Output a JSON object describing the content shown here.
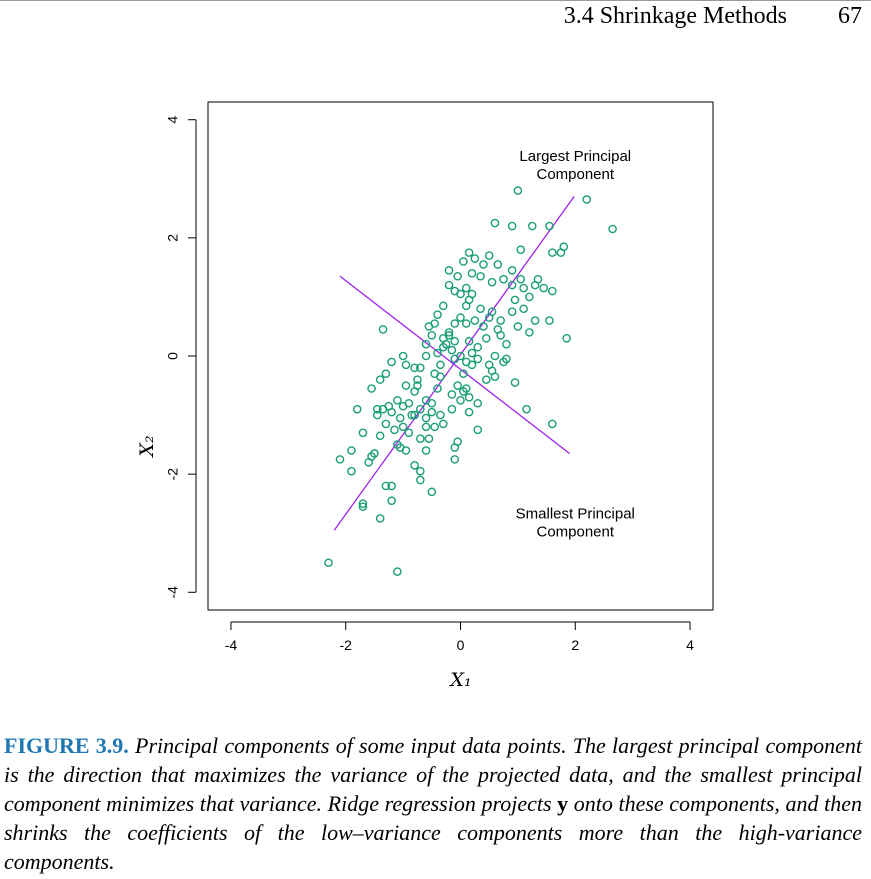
{
  "header": {
    "section_title": "3.4 Shrinkage Methods",
    "page_number": "67"
  },
  "chart_data": {
    "type": "scatter",
    "xlabel": "X₁",
    "ylabel": "X₂",
    "xlim": [
      -4.4,
      4.4
    ],
    "ylim": [
      -4.3,
      4.3
    ],
    "xticks": [
      -4,
      -2,
      0,
      2,
      4
    ],
    "yticks": [
      -4,
      -2,
      0,
      2,
      4
    ],
    "xtick_labels": [
      "-4",
      "-2",
      "0",
      "2",
      "4"
    ],
    "ytick_labels": [
      "-4",
      "-2",
      "0",
      "2",
      "4"
    ],
    "grid": false,
    "marker_color": "#1a9e77",
    "line_color": "#a020f0",
    "annotations": [
      {
        "lines": [
          "Largest Principal",
          "Component"
        ],
        "x": 2.0,
        "y": 3.3
      },
      {
        "lines": [
          "Smallest Principal",
          "Component"
        ],
        "x": 2.0,
        "y": -2.75
      }
    ],
    "lines": [
      {
        "name": "largest",
        "x": [
          -2.2,
          1.98
        ],
        "y": [
          -2.95,
          2.7
        ]
      },
      {
        "name": "smallest",
        "x": [
          -2.1,
          1.9
        ],
        "y": [
          1.35,
          -1.65
        ]
      }
    ],
    "points": [
      [
        -2.3,
        -3.5
      ],
      [
        -1.1,
        -3.65
      ],
      [
        -1.4,
        -2.75
      ],
      [
        -1.7,
        -2.5
      ],
      [
        -1.7,
        -2.55
      ],
      [
        -1.2,
        -2.45
      ],
      [
        -1.2,
        -2.2
      ],
      [
        -1.3,
        -2.2
      ],
      [
        -0.5,
        -2.3
      ],
      [
        -0.7,
        -2.1
      ],
      [
        -2.1,
        -1.75
      ],
      [
        -1.9,
        -1.95
      ],
      [
        -1.6,
        -1.8
      ],
      [
        -1.55,
        -1.7
      ],
      [
        -1.5,
        -1.65
      ],
      [
        -1.9,
        -1.6
      ],
      [
        -1.1,
        -1.5
      ],
      [
        -1.05,
        -1.55
      ],
      [
        -0.8,
        -1.85
      ],
      [
        -0.7,
        -1.95
      ],
      [
        -0.6,
        -1.6
      ],
      [
        -0.1,
        -1.75
      ],
      [
        -0.1,
        -1.55
      ],
      [
        -0.05,
        -1.45
      ],
      [
        -1.7,
        -1.3
      ],
      [
        -1.4,
        -1.35
      ],
      [
        -1.3,
        -1.15
      ],
      [
        -1.2,
        -0.95
      ],
      [
        -1.0,
        -1.2
      ],
      [
        -0.9,
        -1.3
      ],
      [
        -0.7,
        -1.4
      ],
      [
        -0.55,
        -1.4
      ],
      [
        -0.6,
        -1.05
      ],
      [
        -0.45,
        -1.2
      ],
      [
        -0.35,
        -1.0
      ],
      [
        -0.5,
        -0.95
      ],
      [
        -0.7,
        -0.9
      ],
      [
        -0.9,
        -0.8
      ],
      [
        -1.0,
        -0.85
      ],
      [
        -1.1,
        -0.75
      ],
      [
        -1.25,
        -0.85
      ],
      [
        -1.35,
        -0.9
      ],
      [
        -1.45,
        -0.9
      ],
      [
        -1.8,
        -0.9
      ],
      [
        -1.55,
        -0.55
      ],
      [
        -1.4,
        -0.4
      ],
      [
        -1.3,
        -0.3
      ],
      [
        -1.2,
        -0.1
      ],
      [
        -1.0,
        0.0
      ],
      [
        -0.95,
        -0.15
      ],
      [
        -0.8,
        -0.2
      ],
      [
        -0.75,
        -0.4
      ],
      [
        -0.95,
        -0.5
      ],
      [
        -0.8,
        -0.6
      ],
      [
        -0.75,
        -0.5
      ],
      [
        -0.6,
        -0.75
      ],
      [
        -0.5,
        -0.8
      ],
      [
        -0.4,
        -0.55
      ],
      [
        -0.35,
        -0.35
      ],
      [
        -0.45,
        -0.3
      ],
      [
        -0.7,
        -0.2
      ],
      [
        -0.6,
        0.0
      ],
      [
        -0.4,
        0.05
      ],
      [
        -0.3,
        0.15
      ],
      [
        -0.15,
        0.1
      ],
      [
        -0.1,
        -0.05
      ],
      [
        0.0,
        0.0
      ],
      [
        0.1,
        -0.1
      ],
      [
        0.2,
        -0.15
      ],
      [
        0.05,
        -0.3
      ],
      [
        -0.05,
        -0.5
      ],
      [
        0.1,
        -0.55
      ],
      [
        0.3,
        -0.8
      ],
      [
        0.0,
        -0.75
      ],
      [
        -0.15,
        -0.9
      ],
      [
        0.15,
        -0.95
      ],
      [
        0.3,
        -1.25
      ],
      [
        0.55,
        -0.25
      ],
      [
        0.6,
        -0.35
      ],
      [
        0.45,
        -0.4
      ],
      [
        0.5,
        -0.15
      ],
      [
        0.75,
        -0.1
      ],
      [
        0.95,
        -0.45
      ],
      [
        1.15,
        -0.9
      ],
      [
        1.6,
        -1.15
      ],
      [
        1.85,
        0.3
      ],
      [
        1.55,
        0.6
      ],
      [
        1.3,
        0.6
      ],
      [
        1.2,
        0.4
      ],
      [
        1.0,
        0.5
      ],
      [
        0.8,
        0.2
      ],
      [
        0.65,
        0.45
      ],
      [
        0.7,
        0.6
      ],
      [
        0.9,
        0.75
      ],
      [
        1.1,
        0.8
      ],
      [
        1.2,
        1.0
      ],
      [
        1.45,
        1.15
      ],
      [
        1.6,
        1.1
      ],
      [
        1.3,
        1.2
      ],
      [
        1.05,
        1.3
      ],
      [
        0.9,
        1.2
      ],
      [
        0.75,
        1.3
      ],
      [
        0.55,
        1.25
      ],
      [
        0.35,
        1.35
      ],
      [
        0.2,
        1.4
      ],
      [
        0.1,
        1.15
      ],
      [
        -0.1,
        1.1
      ],
      [
        -0.2,
        1.2
      ],
      [
        -0.3,
        0.85
      ],
      [
        -0.4,
        0.7
      ],
      [
        0.1,
        0.85
      ],
      [
        0.25,
        0.6
      ],
      [
        0.1,
        0.55
      ],
      [
        -0.1,
        0.55
      ],
      [
        -0.5,
        0.35
      ],
      [
        -0.6,
        0.2
      ],
      [
        -0.3,
        0.3
      ],
      [
        -0.2,
        0.35
      ],
      [
        -0.1,
        0.25
      ],
      [
        0.15,
        0.25
      ],
      [
        0.3,
        0.15
      ],
      [
        0.45,
        0.3
      ],
      [
        0.6,
        0.0
      ],
      [
        0.8,
        -0.05
      ],
      [
        -0.45,
        0.55
      ],
      [
        -0.55,
        0.5
      ],
      [
        -1.35,
        0.45
      ],
      [
        0.0,
        1.05
      ],
      [
        0.15,
        0.95
      ],
      [
        0.4,
        1.55
      ],
      [
        0.25,
        1.65
      ],
      [
        0.15,
        1.75
      ],
      [
        0.5,
        1.7
      ],
      [
        0.65,
        1.55
      ],
      [
        0.9,
        1.45
      ],
      [
        1.05,
        1.8
      ],
      [
        0.9,
        2.2
      ],
      [
        1.25,
        2.2
      ],
      [
        1.55,
        2.2
      ],
      [
        1.8,
        1.85
      ],
      [
        1.6,
        1.75
      ],
      [
        1.75,
        1.75
      ],
      [
        0.6,
        2.25
      ],
      [
        1.0,
        2.8
      ],
      [
        2.2,
        2.65
      ],
      [
        2.65,
        2.15
      ],
      [
        -0.2,
        1.45
      ],
      [
        -0.05,
        1.35
      ],
      [
        0.05,
        1.6
      ],
      [
        0.35,
        0.8
      ],
      [
        0.55,
        0.75
      ],
      [
        0.2,
        1.05
      ],
      [
        0.0,
        0.65
      ],
      [
        -0.2,
        0.4
      ],
      [
        0.4,
        0.5
      ],
      [
        0.5,
        0.65
      ],
      [
        0.7,
        0.35
      ],
      [
        0.95,
        0.95
      ],
      [
        1.1,
        1.15
      ],
      [
        0.3,
        -0.05
      ],
      [
        0.2,
        0.05
      ],
      [
        -0.25,
        0.2
      ],
      [
        -0.35,
        -0.15
      ],
      [
        -0.15,
        -0.65
      ],
      [
        -0.85,
        -1.0
      ],
      [
        -1.05,
        -1.05
      ],
      [
        -0.95,
        -1.6
      ],
      [
        -1.45,
        -1.0
      ],
      [
        -1.15,
        -1.25
      ],
      [
        -0.3,
        -1.15
      ],
      [
        0.05,
        -0.6
      ],
      [
        0.15,
        -0.7
      ],
      [
        -0.8,
        -1.0
      ],
      [
        -0.6,
        -1.2
      ],
      [
        1.35,
        1.3
      ]
    ]
  },
  "caption": {
    "label": "FIGURE 3.9.",
    "text_1": " Principal components of some input data points. The largest principal component is the direction that maximizes the variance of the projected data, and the smallest principal component minimizes that variance. Ridge regression projects ",
    "bold_symbol": "y",
    "text_2": " onto these components, and then shrinks the coefficients of the low–variance components more than the high-variance components."
  }
}
